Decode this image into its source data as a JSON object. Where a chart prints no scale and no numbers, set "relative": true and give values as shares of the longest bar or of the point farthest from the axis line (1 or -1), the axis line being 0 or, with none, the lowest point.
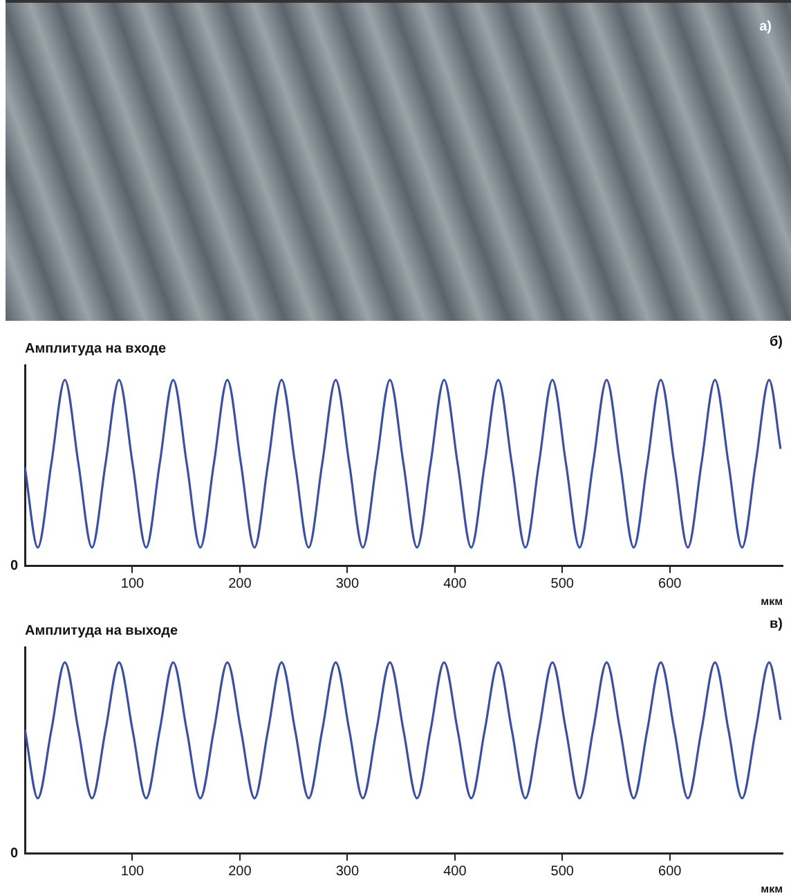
{
  "chart_data": [
    {
      "type": "other",
      "annotations": [
        "а)"
      ]
    },
    {
      "type": "line",
      "title": "Амплитуда на входе",
      "xlabel": "мкм",
      "relative": true,
      "xlim": [
        0,
        705
      ],
      "xticks": [
        100,
        200,
        300,
        400,
        500,
        600
      ],
      "annotations": [
        "б)",
        "0"
      ],
      "series": [
        {
          "color": "#3b4fa3",
          "x": [
            0,
            12.0,
            24.6,
            37.2,
            49.8,
            62.4,
            75.0,
            87.6,
            100.2,
            112.8,
            125.4,
            138.0,
            150.6,
            163.2,
            175.8,
            188.4,
            201.0,
            213.6,
            226.2,
            238.8,
            251.4,
            264.0,
            276.6,
            289.2,
            301.8,
            314.4,
            327.0,
            339.6,
            352.2,
            364.8,
            377.4,
            390.0,
            402.6,
            415.2,
            427.8,
            440.4,
            453.0,
            465.6,
            478.2,
            490.8,
            503.4,
            516.0,
            528.6,
            541.2,
            553.8,
            566.4,
            579.0,
            591.6,
            604.2,
            616.8,
            629.4,
            642.0,
            654.6,
            667.2,
            679.8,
            692.4,
            703
          ],
          "values": [
            0.53,
            0.1,
            0.55,
            1,
            0.55,
            0.1,
            0.55,
            1,
            0.55,
            0.1,
            0.55,
            1,
            0.55,
            0.1,
            0.55,
            1,
            0.55,
            0.1,
            0.55,
            1,
            0.55,
            0.1,
            0.55,
            1,
            0.55,
            0.1,
            0.55,
            1,
            0.55,
            0.1,
            0.55,
            1,
            0.55,
            0.1,
            0.55,
            1,
            0.55,
            0.1,
            0.55,
            1,
            0.55,
            0.1,
            0.55,
            1,
            0.55,
            0.1,
            0.55,
            1,
            0.55,
            0.1,
            0.55,
            1,
            0.55,
            0.1,
            0.55,
            1,
            0.63
          ]
        }
      ]
    },
    {
      "type": "line",
      "title": "Амплитуда на выходе",
      "xlabel": "мкм",
      "relative": true,
      "xlim": [
        0,
        705
      ],
      "xticks": [
        100,
        200,
        300,
        400,
        500,
        600
      ],
      "annotations": [
        "в)",
        "0"
      ],
      "series": [
        {
          "color": "#3b4fa3",
          "x": [
            0,
            12.0,
            24.6,
            37.2,
            49.8,
            62.4,
            75.0,
            87.6,
            100.2,
            112.8,
            125.4,
            138.0,
            150.6,
            163.2,
            175.8,
            188.4,
            201.0,
            213.6,
            226.2,
            238.8,
            251.4,
            264.0,
            276.6,
            289.2,
            301.8,
            314.4,
            327.0,
            339.6,
            352.2,
            364.8,
            377.4,
            390.0,
            402.6,
            415.2,
            427.8,
            440.4,
            453.0,
            465.6,
            478.2,
            490.8,
            503.4,
            516.0,
            528.6,
            541.2,
            553.8,
            566.4,
            579.0,
            591.6,
            604.2,
            616.8,
            629.4,
            642.0,
            654.6,
            667.2,
            679.8,
            692.4,
            703
          ],
          "values": [
            0.65,
            0.29,
            0.645,
            1,
            0.645,
            0.29,
            0.645,
            1,
            0.645,
            0.29,
            0.645,
            1,
            0.645,
            0.29,
            0.645,
            1,
            0.645,
            0.29,
            0.645,
            1,
            0.645,
            0.29,
            0.645,
            1,
            0.645,
            0.29,
            0.645,
            1,
            0.645,
            0.29,
            0.645,
            1,
            0.645,
            0.29,
            0.645,
            1,
            0.645,
            0.29,
            0.645,
            1,
            0.645,
            0.29,
            0.645,
            1,
            0.645,
            0.29,
            0.645,
            1,
            0.645,
            0.29,
            0.645,
            1,
            0.645,
            0.29,
            0.645,
            1,
            0.7
          ]
        }
      ]
    }
  ]
}
